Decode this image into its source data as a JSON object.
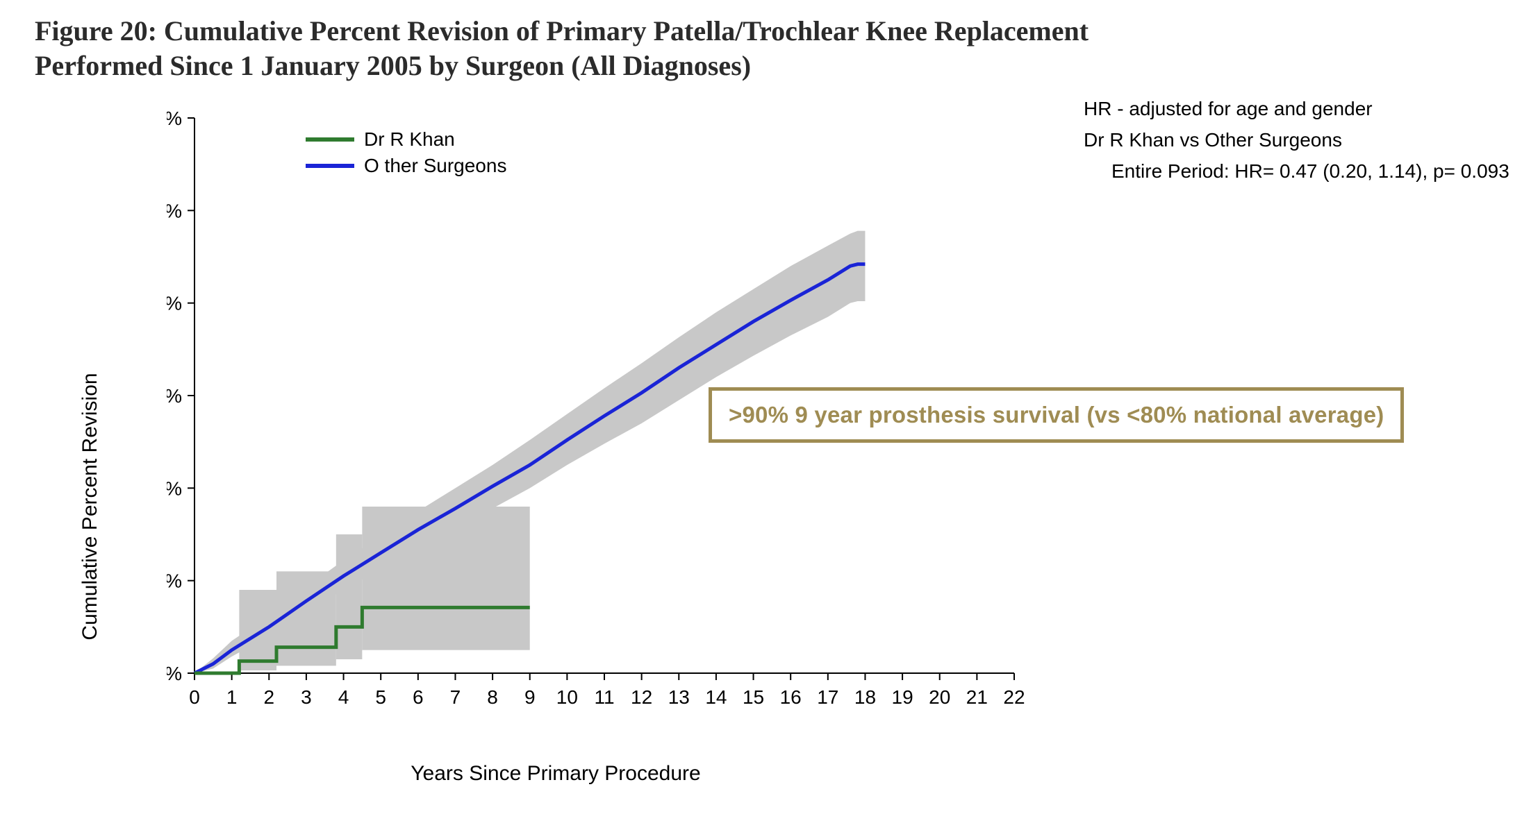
{
  "title": "Figure 20: Cumulative Percent Revision of Primary Patella/Trochlear Knee Replacement Performed Since 1 January 2005 by Surgeon (All Diagnoses)",
  "hr_block": {
    "line1": "HR - adjusted for age and gender",
    "line2": "Dr R Khan vs Other Surgeons",
    "line3": "Entire Period: HR= 0.47 (0.20, 1.14), p= 0.093"
  },
  "callout": ">90% 9 year prosthesis survival (vs <80% national average)",
  "chart": {
    "type": "line-step",
    "xlabel": "Years Since Primary Procedure",
    "ylabel": "Cumulative Percent Revision",
    "xlim": [
      0,
      22
    ],
    "ylim": [
      0,
      60
    ],
    "xtick_step": 1,
    "ytick_step": 10,
    "ytick_suffix": "%",
    "background_color": "#ffffff",
    "axis_color": "#000000",
    "axis_width": 2,
    "label_fontsize": 30,
    "tick_fontsize": 28,
    "ci_color": "#c8c8c8",
    "legend": {
      "position": "upper-left",
      "items": [
        {
          "label": "Dr R Khan",
          "color": "#2f7b2f"
        },
        {
          "label": "O ther Surgeons",
          "color": "#1a24d6"
        }
      ]
    },
    "series": {
      "other_surgeons": {
        "label": "Other Surgeons",
        "color": "#1a24d6",
        "line_width": 5,
        "x": [
          0,
          0.5,
          1,
          2,
          3,
          4,
          5,
          6,
          7,
          8,
          9,
          10,
          11,
          12,
          13,
          14,
          15,
          16,
          17,
          17.6,
          17.8,
          18.0
        ],
        "y": [
          0,
          1.0,
          2.5,
          5.0,
          7.8,
          10.5,
          13.0,
          15.5,
          17.8,
          20.2,
          22.5,
          25.2,
          27.8,
          30.3,
          33.0,
          35.5,
          38.0,
          40.3,
          42.5,
          44.0,
          44.2,
          44.2
        ],
        "ci_lower": [
          0,
          0.5,
          1.8,
          4.0,
          6.5,
          9.0,
          11.3,
          13.5,
          15.7,
          17.8,
          20.0,
          22.5,
          24.8,
          27.0,
          29.5,
          32.0,
          34.3,
          36.5,
          38.5,
          40.0,
          40.2,
          40.2
        ],
        "ci_upper": [
          0,
          1.6,
          3.5,
          6.2,
          9.3,
          12.2,
          14.8,
          17.5,
          20.0,
          22.5,
          25.2,
          28.0,
          30.8,
          33.5,
          36.3,
          39.0,
          41.5,
          44.0,
          46.2,
          47.5,
          47.8,
          47.8
        ]
      },
      "dr_khan": {
        "label": "Dr R Khan",
        "color": "#2f7b2f",
        "line_width": 5,
        "x": [
          0,
          1.0,
          1.2,
          1.2,
          2.0,
          2.2,
          2.2,
          3.8,
          3.8,
          4.5,
          4.5,
          9.0
        ],
        "y": [
          0,
          0,
          0,
          1.3,
          1.3,
          1.3,
          2.8,
          2.8,
          5.0,
          5.0,
          7.1,
          7.1
        ],
        "ci_steps": [
          {
            "x0": 1.2,
            "x1": 2.2,
            "lo": 0.3,
            "hi": 9.0
          },
          {
            "x0": 2.2,
            "x1": 3.8,
            "lo": 0.8,
            "hi": 11.0
          },
          {
            "x0": 3.8,
            "x1": 4.5,
            "lo": 1.5,
            "hi": 15.0
          },
          {
            "x0": 4.5,
            "x1": 9.0,
            "lo": 2.5,
            "hi": 18.0
          }
        ]
      }
    }
  }
}
